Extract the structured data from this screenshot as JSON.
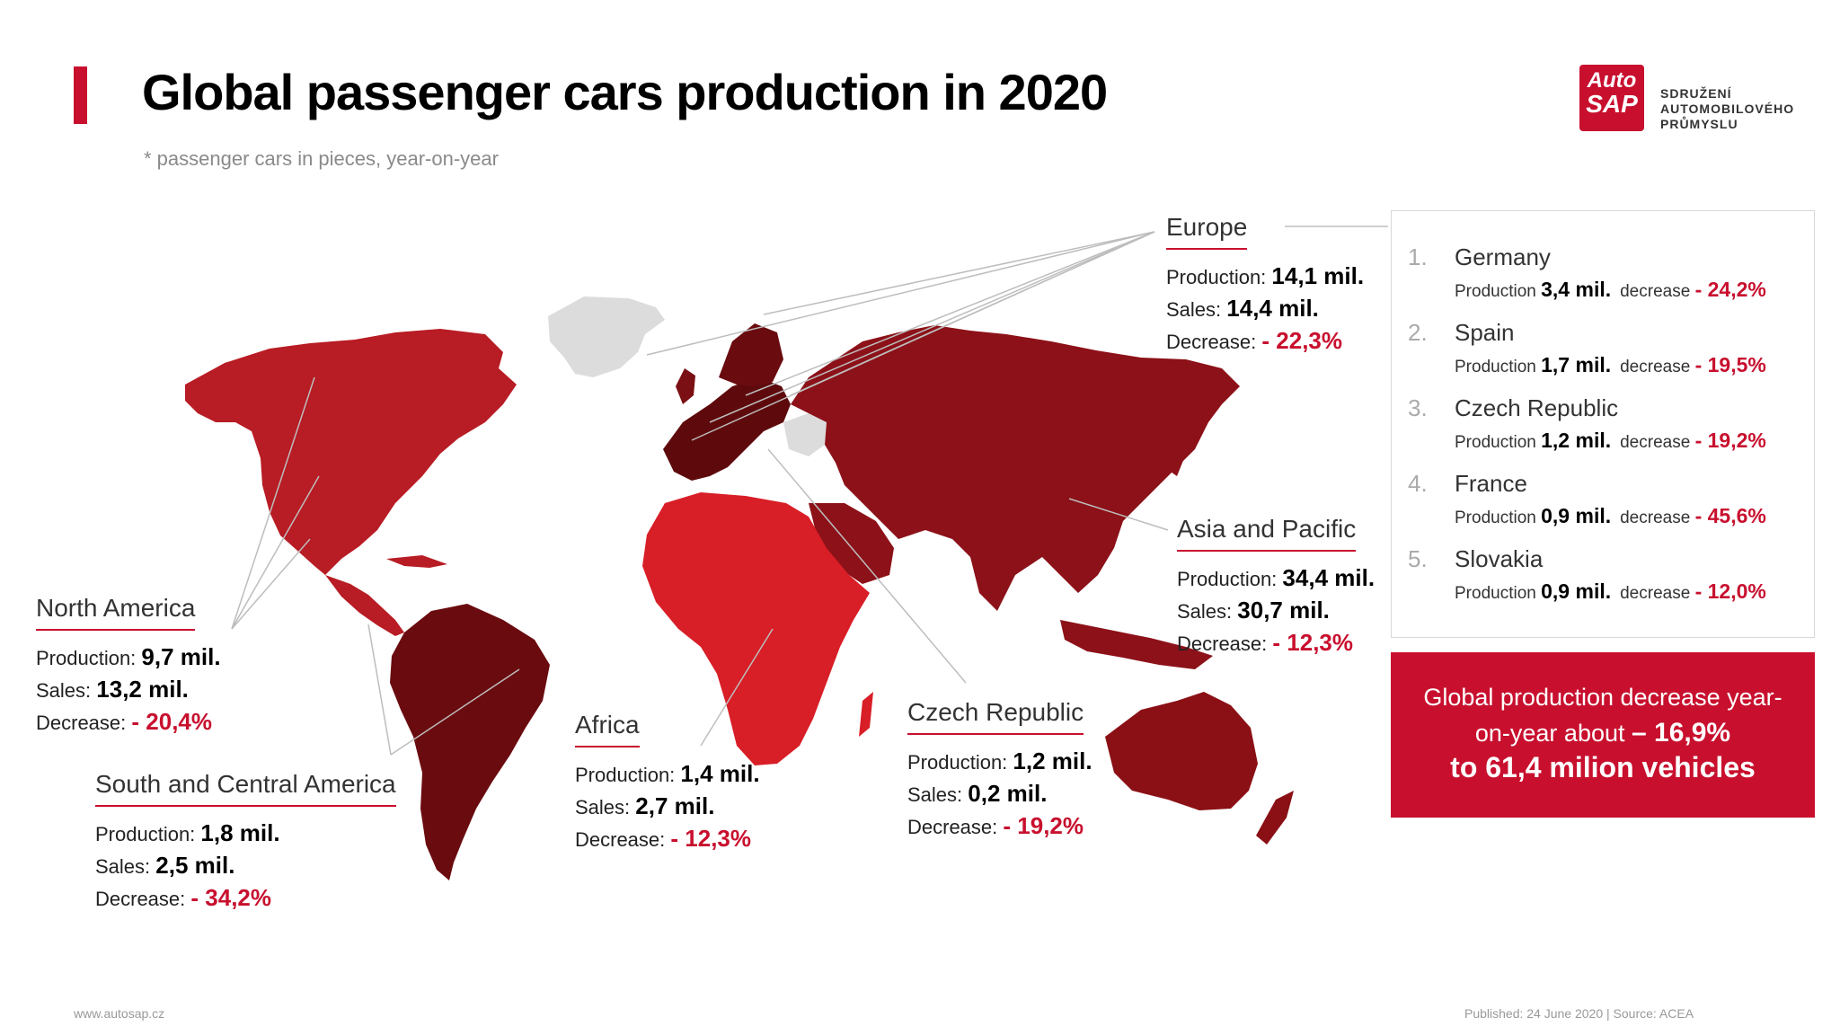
{
  "title": "Global passenger cars production in 2020",
  "subtitle": "* passenger cars in pieces, year-on-year",
  "logo": {
    "mark_line1": "Auto",
    "mark_line2": "SAP",
    "text_line1": "SDRUŽENÍ",
    "text_line2": "AUTOMOBILOVÉHO",
    "text_line3": "PRŮMYSLU"
  },
  "colors": {
    "accent": "#c8102e",
    "europe_core": "#5e0a0c",
    "europe": "#7a1014",
    "asia": "#8c1118",
    "north_america": "#b81c24",
    "south_america": "#6a0b0f",
    "africa": "#d81e26",
    "oceania": "#8a1016",
    "no_data": "#dcdcdc"
  },
  "regions": {
    "europe": {
      "name": "Europe",
      "production_label": "Production:",
      "production": "14,1 mil.",
      "sales_label": "Sales:",
      "sales": "14,4 mil.",
      "decrease_label": "Decrease:",
      "decrease": "- 22,3%"
    },
    "asia": {
      "name": "Asia and Pacific",
      "production_label": "Production:",
      "production": "34,4 mil.",
      "sales_label": "Sales:",
      "sales": "30,7 mil.",
      "decrease_label": "Decrease:",
      "decrease": "- 12,3%"
    },
    "north_america": {
      "name": "North America",
      "production_label": "Production:",
      "production": "9,7 mil.",
      "sales_label": "Sales:",
      "sales": "13,2 mil.",
      "decrease_label": "Decrease:",
      "decrease": "- 20,4%"
    },
    "south_america": {
      "name": "South and Central America",
      "production_label": "Production:",
      "production": "1,8 mil.",
      "sales_label": "Sales:",
      "sales": "2,5 mil.",
      "decrease_label": "Decrease:",
      "decrease": "- 34,2%"
    },
    "africa": {
      "name": "Africa",
      "production_label": "Production:",
      "production": "1,4 mil.",
      "sales_label": "Sales:",
      "sales": "2,7 mil.",
      "decrease_label": "Decrease:",
      "decrease": "- 12,3%"
    },
    "czech": {
      "name": "Czech Republic",
      "production_label": "Production:",
      "production": "1,2 mil.",
      "sales_label": "Sales:",
      "sales": "0,2 mil.",
      "decrease_label": "Decrease:",
      "decrease": "- 19,2%"
    }
  },
  "ranking": [
    {
      "rank": "1.",
      "country": "Germany",
      "production_label": "Production",
      "production": "3,4 mil.",
      "decrease_label": "decrease",
      "decrease": "- 24,2%"
    },
    {
      "rank": "2.",
      "country": "Spain",
      "production_label": "Production",
      "production": "1,7 mil.",
      "decrease_label": "decrease",
      "decrease": "- 19,5%"
    },
    {
      "rank": "3.",
      "country": "Czech Republic",
      "production_label": "Production",
      "production": "1,2 mil.",
      "decrease_label": "decrease",
      "decrease": "- 19,2%"
    },
    {
      "rank": "4.",
      "country": "France",
      "production_label": "Production",
      "production": "0,9 mil.",
      "decrease_label": "decrease",
      "decrease": "- 45,6%"
    },
    {
      "rank": "5.",
      "country": "Slovakia",
      "production_label": "Production",
      "production": "0,9 mil.",
      "decrease_label": "decrease",
      "decrease": "- 12,0%"
    }
  ],
  "global": {
    "line1": "Global production decrease year-on-year about",
    "value": "– 16,9%",
    "line2": "to 61,4 milion vehicles"
  },
  "footer": {
    "website": "www.autosap.cz",
    "source": "Published: 24 June 2020  |  Source: ACEA"
  }
}
